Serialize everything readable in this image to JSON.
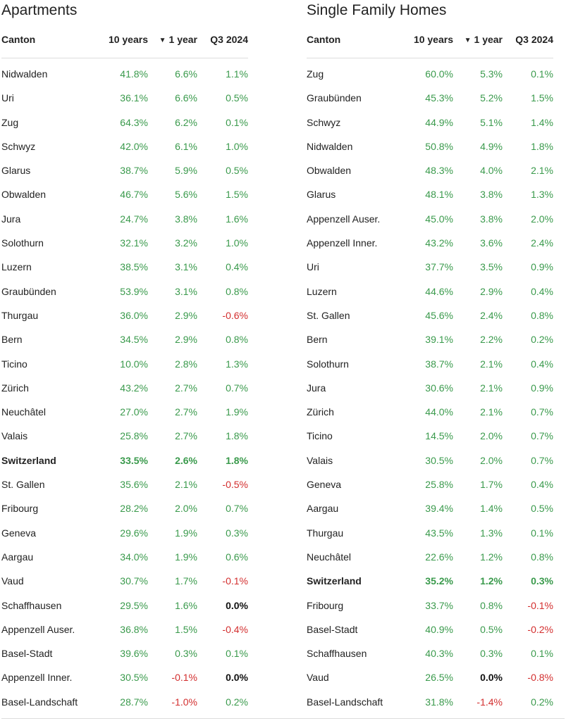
{
  "colors": {
    "positive": "#3a9a4c",
    "negative": "#d32f2f",
    "zero": "#111111",
    "text": "#222222"
  },
  "headers": {
    "canton": "Canton",
    "ten_years": "10 years",
    "sort_icon": "▼",
    "one_year": "1 year",
    "q3": "Q3 2024"
  },
  "apartments": {
    "title": "Apartments",
    "rows": [
      {
        "canton": "Nidwalden",
        "y10": "41.8%",
        "y1": "6.6%",
        "q3": "1.1%"
      },
      {
        "canton": "Uri",
        "y10": "36.1%",
        "y1": "6.6%",
        "q3": "0.5%"
      },
      {
        "canton": "Zug",
        "y10": "64.3%",
        "y1": "6.2%",
        "q3": "0.1%"
      },
      {
        "canton": "Schwyz",
        "y10": "42.0%",
        "y1": "6.1%",
        "q3": "1.0%"
      },
      {
        "canton": "Glarus",
        "y10": "38.7%",
        "y1": "5.9%",
        "q3": "0.5%"
      },
      {
        "canton": "Obwalden",
        "y10": "46.7%",
        "y1": "5.6%",
        "q3": "1.5%"
      },
      {
        "canton": "Jura",
        "y10": "24.7%",
        "y1": "3.8%",
        "q3": "1.6%"
      },
      {
        "canton": "Solothurn",
        "y10": "32.1%",
        "y1": "3.2%",
        "q3": "1.0%"
      },
      {
        "canton": "Luzern",
        "y10": "38.5%",
        "y1": "3.1%",
        "q3": "0.4%"
      },
      {
        "canton": "Graubünden",
        "y10": "53.9%",
        "y1": "3.1%",
        "q3": "0.8%"
      },
      {
        "canton": "Thurgau",
        "y10": "36.0%",
        "y1": "2.9%",
        "q3": "-0.6%"
      },
      {
        "canton": "Bern",
        "y10": "34.5%",
        "y1": "2.9%",
        "q3": "0.8%"
      },
      {
        "canton": "Ticino",
        "y10": "10.0%",
        "y1": "2.8%",
        "q3": "1.3%"
      },
      {
        "canton": "Zürich",
        "y10": "43.2%",
        "y1": "2.7%",
        "q3": "0.7%"
      },
      {
        "canton": "Neuchâtel",
        "y10": "27.0%",
        "y1": "2.7%",
        "q3": "1.9%"
      },
      {
        "canton": "Valais",
        "y10": "25.8%",
        "y1": "2.7%",
        "q3": "1.8%"
      },
      {
        "canton": "Switzerland",
        "y10": "33.5%",
        "y1": "2.6%",
        "q3": "1.8%",
        "bold": true
      },
      {
        "canton": "St. Gallen",
        "y10": "35.6%",
        "y1": "2.1%",
        "q3": "-0.5%"
      },
      {
        "canton": "Fribourg",
        "y10": "28.2%",
        "y1": "2.0%",
        "q3": "0.7%"
      },
      {
        "canton": "Geneva",
        "y10": "29.6%",
        "y1": "1.9%",
        "q3": "0.3%"
      },
      {
        "canton": "Aargau",
        "y10": "34.0%",
        "y1": "1.9%",
        "q3": "0.6%"
      },
      {
        "canton": "Vaud",
        "y10": "30.7%",
        "y1": "1.7%",
        "q3": "-0.1%"
      },
      {
        "canton": "Schaffhausen",
        "y10": "29.5%",
        "y1": "1.6%",
        "q3": "0.0%"
      },
      {
        "canton": "Appenzell Auser.",
        "y10": "36.8%",
        "y1": "1.5%",
        "q3": "-0.4%"
      },
      {
        "canton": "Basel-Stadt",
        "y10": "39.6%",
        "y1": "0.3%",
        "q3": "0.1%"
      },
      {
        "canton": "Appenzell Inner.",
        "y10": "30.5%",
        "y1": "-0.1%",
        "q3": "0.0%"
      },
      {
        "canton": "Basel-Landschaft",
        "y10": "28.7%",
        "y1": "-1.0%",
        "q3": "0.2%"
      }
    ]
  },
  "homes": {
    "title": "Single Family Homes",
    "rows": [
      {
        "canton": "Zug",
        "y10": "60.0%",
        "y1": "5.3%",
        "q3": "0.1%"
      },
      {
        "canton": "Graubünden",
        "y10": "45.3%",
        "y1": "5.2%",
        "q3": "1.5%"
      },
      {
        "canton": "Schwyz",
        "y10": "44.9%",
        "y1": "5.1%",
        "q3": "1.4%"
      },
      {
        "canton": "Nidwalden",
        "y10": "50.8%",
        "y1": "4.9%",
        "q3": "1.8%"
      },
      {
        "canton": "Obwalden",
        "y10": "48.3%",
        "y1": "4.0%",
        "q3": "2.1%"
      },
      {
        "canton": "Glarus",
        "y10": "48.1%",
        "y1": "3.8%",
        "q3": "1.3%"
      },
      {
        "canton": "Appenzell Auser.",
        "y10": "45.0%",
        "y1": "3.8%",
        "q3": "2.0%"
      },
      {
        "canton": "Appenzell Inner.",
        "y10": "43.2%",
        "y1": "3.6%",
        "q3": "2.4%"
      },
      {
        "canton": "Uri",
        "y10": "37.7%",
        "y1": "3.5%",
        "q3": "0.9%"
      },
      {
        "canton": "Luzern",
        "y10": "44.6%",
        "y1": "2.9%",
        "q3": "0.4%"
      },
      {
        "canton": "St. Gallen",
        "y10": "45.6%",
        "y1": "2.4%",
        "q3": "0.8%"
      },
      {
        "canton": "Bern",
        "y10": "39.1%",
        "y1": "2.2%",
        "q3": "0.2%"
      },
      {
        "canton": "Solothurn",
        "y10": "38.7%",
        "y1": "2.1%",
        "q3": "0.4%"
      },
      {
        "canton": "Jura",
        "y10": "30.6%",
        "y1": "2.1%",
        "q3": "0.9%"
      },
      {
        "canton": "Zürich",
        "y10": "44.0%",
        "y1": "2.1%",
        "q3": "0.7%"
      },
      {
        "canton": "Ticino",
        "y10": "14.5%",
        "y1": "2.0%",
        "q3": "0.7%"
      },
      {
        "canton": "Valais",
        "y10": "30.5%",
        "y1": "2.0%",
        "q3": "0.7%"
      },
      {
        "canton": "Geneva",
        "y10": "25.8%",
        "y1": "1.7%",
        "q3": "0.4%"
      },
      {
        "canton": "Aargau",
        "y10": "39.4%",
        "y1": "1.4%",
        "q3": "0.5%"
      },
      {
        "canton": "Thurgau",
        "y10": "43.5%",
        "y1": "1.3%",
        "q3": "0.1%"
      },
      {
        "canton": "Neuchâtel",
        "y10": "22.6%",
        "y1": "1.2%",
        "q3": "0.8%"
      },
      {
        "canton": "Switzerland",
        "y10": "35.2%",
        "y1": "1.2%",
        "q3": "0.3%",
        "bold": true
      },
      {
        "canton": "Fribourg",
        "y10": "33.7%",
        "y1": "0.8%",
        "q3": "-0.1%"
      },
      {
        "canton": "Basel-Stadt",
        "y10": "40.9%",
        "y1": "0.5%",
        "q3": "-0.2%"
      },
      {
        "canton": "Schaffhausen",
        "y10": "40.3%",
        "y1": "0.3%",
        "q3": "0.1%"
      },
      {
        "canton": "Vaud",
        "y10": "26.5%",
        "y1": "0.0%",
        "q3": "-0.8%"
      },
      {
        "canton": "Basel-Landschaft",
        "y10": "31.8%",
        "y1": "-1.4%",
        "q3": "0.2%"
      }
    ]
  }
}
